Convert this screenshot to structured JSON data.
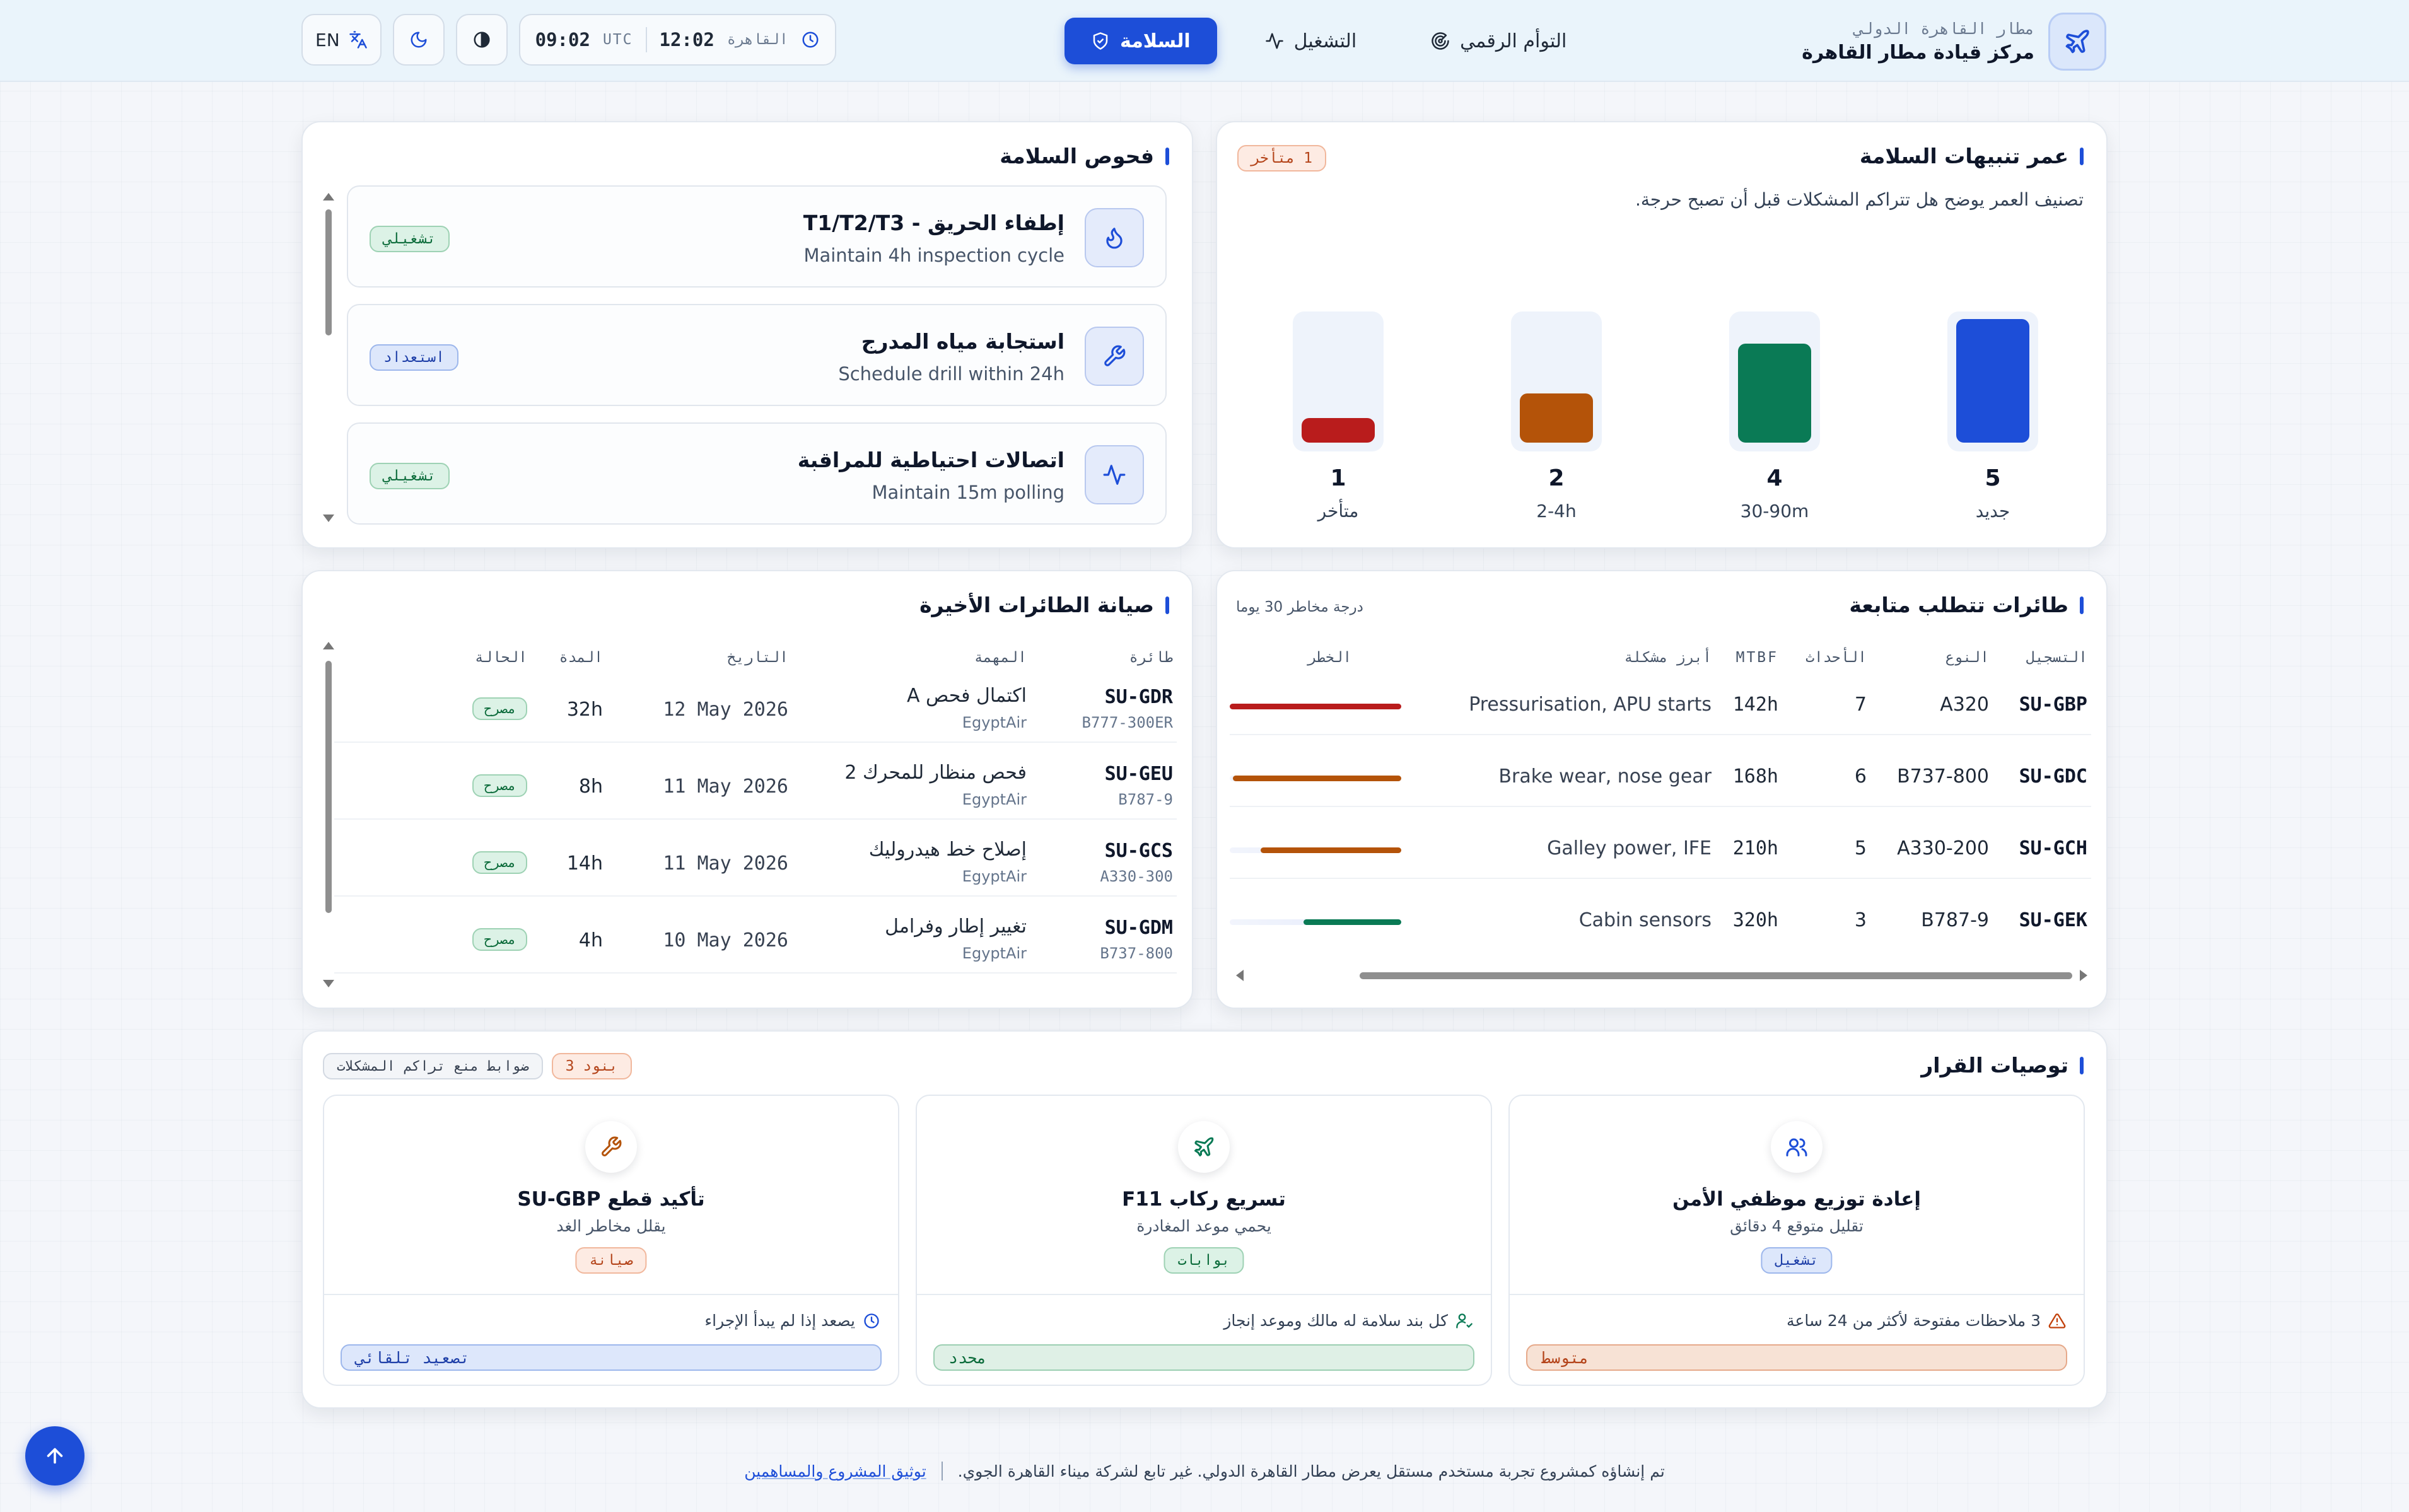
{
  "header": {
    "brand_sub": "مطار القاهرة الدولي",
    "brand_title": "مركز قيادة مطار القاهرة",
    "nav": [
      {
        "label": "السلامة",
        "icon": "shield-icon"
      },
      {
        "label": "التشغيل",
        "icon": "pulse-icon"
      },
      {
        "label": "التوأم الرقمي",
        "icon": "radar-icon"
      }
    ],
    "clock_local_time": "12:02",
    "clock_local_label": "القاهرة",
    "clock_utc_time": "09:02",
    "clock_utc_label": "UTC",
    "language": "EN"
  },
  "safety_checks": {
    "title": "فحوص السلامة",
    "items": [
      {
        "title": "إطفاء الحريق - T1/T2/T3",
        "subtitle": "Maintain 4h inspection cycle",
        "status": "تشغيلي",
        "icon": "flame-icon"
      },
      {
        "title": "استجابة مياه المدرج",
        "subtitle": "Schedule drill within 24h",
        "status": "استعداد",
        "icon": "wrench-icon"
      },
      {
        "title": "اتصالات احتياطية للمراقبة",
        "subtitle": "Maintain 15m polling",
        "status": "تشغيلي",
        "icon": "pulse-icon"
      }
    ]
  },
  "alerts_age": {
    "title": "عمر تنبيهات السلامة",
    "badge": "1 متأخر",
    "description": "تصنيف العمر يوضح هل تتراكم المشكلات قبل أن تصبح حرجة.",
    "colors": {
      "new": "#1d4ed8",
      "mid": "#0a7a55",
      "old": "#b45309",
      "late": "#b91c1c"
    }
  },
  "chart_data": {
    "type": "bar",
    "categories": [
      "جديد",
      "30-90m",
      "2-4h",
      "متأخر"
    ],
    "values": [
      5,
      4,
      2,
      1
    ],
    "ylim": [
      0,
      5
    ]
  },
  "maintenance": {
    "title": "صيانة الطائرات الأخيرة",
    "headers": {
      "aircraft": "طائرة",
      "task": "المهمة",
      "date": "التاريخ",
      "duration": "المدة",
      "status": "الحالة"
    },
    "rows": [
      {
        "reg": "SU-GDR",
        "type": "B777-300ER",
        "task": "اكتمال فحص A",
        "operator": "EgyptAir",
        "date": "12 May 2026",
        "duration": "32h",
        "status": "مصرح"
      },
      {
        "reg": "SU-GEU",
        "type": "B787-9",
        "task": "فحص منظار للمحرك 2",
        "operator": "EgyptAir",
        "date": "11 May 2026",
        "duration": "8h",
        "status": "مصرح"
      },
      {
        "reg": "SU-GCS",
        "type": "A330-300",
        "task": "إصلاح خط هيدروليك",
        "operator": "EgyptAir",
        "date": "11 May 2026",
        "duration": "14h",
        "status": "مصرح"
      },
      {
        "reg": "SU-GDM",
        "type": "B737-800",
        "task": "تغيير إطار وفرامل",
        "operator": "EgyptAir",
        "date": "10 May 2026",
        "duration": "4h",
        "status": "مصرح"
      }
    ]
  },
  "watchlist": {
    "title": "طائرات تتطلب متابعة",
    "subtitle": "درجة مخاطر 30 يوما",
    "headers": {
      "registration": "التسجيل",
      "type": "النوع",
      "events": "الأحداث",
      "mtbf": "MTBF",
      "top_issue": "أبرز مشكلة",
      "risk": "الخطر"
    },
    "rows": [
      {
        "reg": "SU-GBP",
        "type": "A320",
        "events": "7",
        "mtbf": "142h",
        "issue": "Pressurisation, APU starts",
        "risk": 1.0,
        "color": "#b91c1c"
      },
      {
        "reg": "SU-GDC",
        "type": "B737-800",
        "events": "6",
        "mtbf": "168h",
        "issue": "Brake wear, nose gear",
        "risk": 0.98,
        "color": "#b45309"
      },
      {
        "reg": "SU-GCH",
        "type": "A330-200",
        "events": "5",
        "mtbf": "210h",
        "issue": "Galley power, IFE",
        "risk": 0.82,
        "color": "#b45309"
      },
      {
        "reg": "SU-GEK",
        "type": "B787-9",
        "events": "3",
        "mtbf": "320h",
        "issue": "Cabin sensors",
        "risk": 0.57,
        "color": "#0a7a55"
      }
    ]
  },
  "recommendations": {
    "title": "توصيات القرار",
    "count_badge": "3 بنود",
    "tag": "ضوابط منع تراكم المشكلات",
    "items": [
      {
        "icon": "users-icon",
        "icon_color": "#1d4ed8",
        "title": "إعادة توزيع موظفي الأمن",
        "subtitle": "تقليل متوقع 4 دقائق",
        "tag": "تشغيل",
        "tag_style": "blue",
        "note": "3 ملاحظات مفتوحة لأكثر من 24 ساعة",
        "note_icon": "warning-icon",
        "note_color": "#c2410c",
        "bar": "متوسط",
        "bar_style": "orange"
      },
      {
        "icon": "plane-icon",
        "icon_color": "#0a7a55",
        "title": "تسريع ركاب F11",
        "subtitle": "يحمي موعد المغادرة",
        "tag": "بوابات",
        "tag_style": "green",
        "note": "كل بند سلامة له مالك وموعد إنجاز",
        "note_icon": "user-check-icon",
        "note_color": "#0a7a55",
        "bar": "محدد",
        "bar_style": "green"
      },
      {
        "icon": "wrench-icon",
        "icon_color": "#b45309",
        "title": "تأكيد قطع SU-GBP",
        "subtitle": "يقلل مخاطر الغد",
        "tag": "صيانة",
        "tag_style": "orange",
        "note": "يصعد إذا لم يبدأ الإجراء",
        "note_icon": "clock-icon",
        "note_color": "#1d4ed8",
        "bar": "تصعيد تلقائي",
        "bar_style": "blue"
      }
    ]
  },
  "footer": {
    "text": "تم إنشاؤه كمشروع تجربة مستخدم مستقل يعرض مطار القاهرة الدولي. غير تابع لشركة ميناء القاهرة الجوي.",
    "link": "توثيق المشروع والمساهمين"
  }
}
